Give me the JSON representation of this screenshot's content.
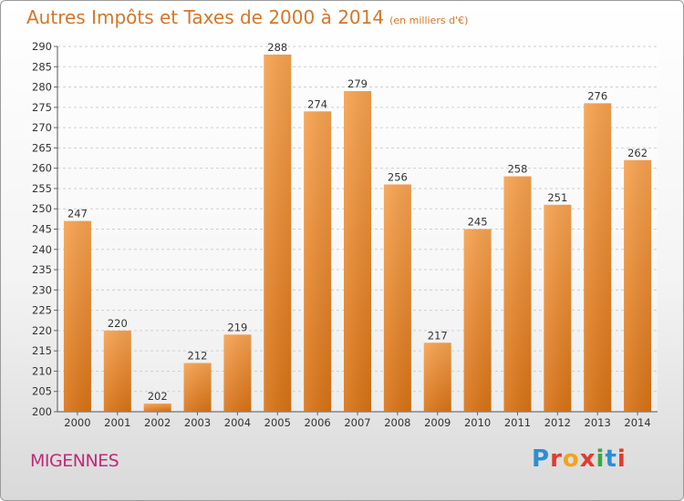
{
  "header": {
    "title": "Autres Impôts et Taxes de 2000 à 2014",
    "unit": "(en milliers d'€)"
  },
  "footer": {
    "town": "MIGENNES",
    "logo": "Proxiti"
  },
  "colors": {
    "bar_top": "#f7a24f",
    "bar_bottom": "#d97316",
    "title": "#d4762a",
    "town": "#c0297c"
  },
  "chart_data": {
    "type": "bar",
    "title": "Autres Impôts et Taxes de 2000 à 2014",
    "unit": "(en milliers d'€)",
    "categories": [
      "2000",
      "2001",
      "2002",
      "2003",
      "2004",
      "2005",
      "2006",
      "2007",
      "2008",
      "2009",
      "2010",
      "2011",
      "2012",
      "2013",
      "2014"
    ],
    "values": [
      247,
      220,
      202,
      212,
      219,
      288,
      274,
      279,
      256,
      217,
      245,
      258,
      251,
      276,
      262
    ],
    "ylim": [
      200,
      290
    ],
    "ytick_step": 5,
    "grid": true
  }
}
